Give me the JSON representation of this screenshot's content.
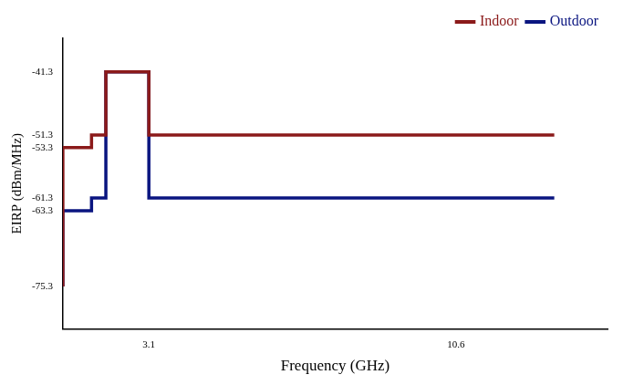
{
  "chart_data": {
    "type": "line",
    "x_label": "Frequency (GHz)",
    "y_label": "EIRP (dBm/MHz)",
    "x": [
      1.0,
      1.7,
      2.05,
      3.1,
      10.6,
      13.0
    ],
    "series": [
      {
        "name": "Indoor",
        "color": "#8b1a1a",
        "line_style": "step",
        "values": [
          -75.3,
          -53.3,
          -51.3,
          -41.3,
          -51.3,
          -51.3
        ]
      },
      {
        "name": "Outdoor",
        "color": "#0a1580",
        "line_style": "step",
        "values": [
          -75.3,
          -63.3,
          -61.3,
          -41.3,
          -61.3,
          -61.3
        ]
      }
    ],
    "xlim": [
      1.0,
      14.3
    ],
    "xticks": [
      3.1,
      10.6
    ],
    "ylim": [
      -82,
      -36
    ],
    "yticks": [
      -75.3,
      -63.3,
      -61.3,
      -53.3,
      -51.3,
      -41.3
    ],
    "grid": false,
    "legend": "upper right"
  }
}
